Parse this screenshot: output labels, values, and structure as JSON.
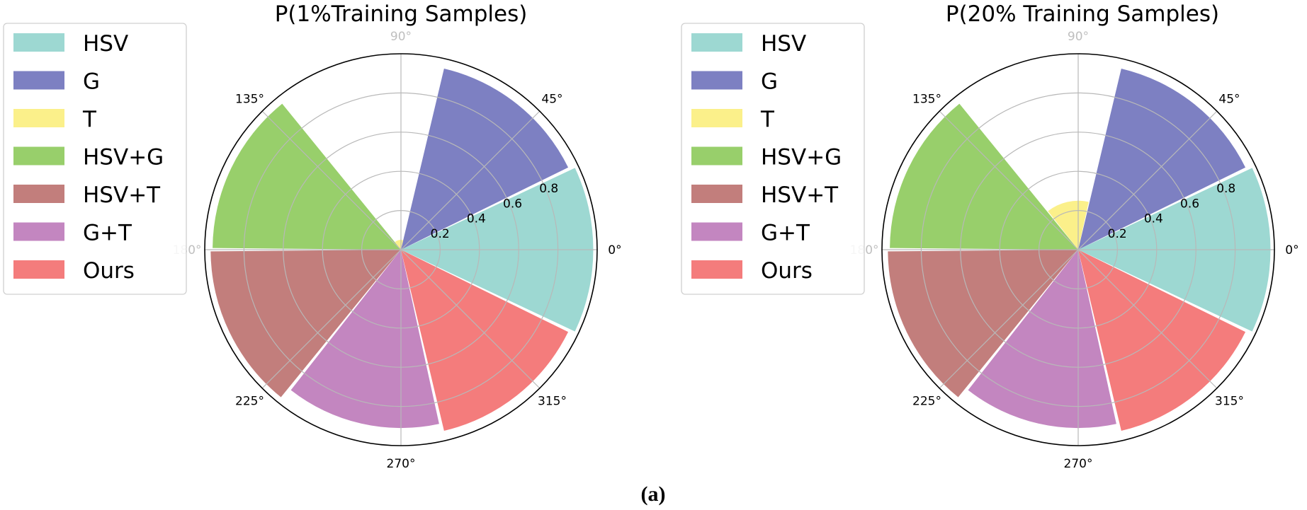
{
  "caption": "(a)",
  "colors": {
    "HSV": "#9dd8d2",
    "G": "#7d80c2",
    "T": "#fbf08a",
    "HSV+G": "#98cf6b",
    "HSV+T": "#c27e7c",
    "G+T": "#c386c0",
    "Ours": "#f47c7c"
  },
  "chart_data": [
    {
      "type": "polar-bar",
      "title": "P(1%Training Samples)",
      "categories": [
        "HSV",
        "G",
        "T",
        "HSV+G",
        "HSV+T",
        "G+T",
        "Ours"
      ],
      "angles_deg": [
        0,
        51.43,
        102.86,
        154.29,
        205.71,
        257.14,
        308.57
      ],
      "values": [
        0.98,
        0.95,
        0.05,
        0.96,
        0.97,
        0.91,
        0.95
      ],
      "rlim": [
        0,
        1.0
      ],
      "radial_ticks": [
        "0.2",
        "0.4",
        "0.6",
        "0.8"
      ],
      "angle_labels": [
        "0°",
        "45°",
        "90°",
        "135°",
        "180°",
        "225°",
        "270°",
        "315°"
      ],
      "legend": [
        "HSV",
        "G",
        "T",
        "HSV+G",
        "HSV+T",
        "G+T",
        "Ours"
      ],
      "legend_position": "left"
    },
    {
      "type": "polar-bar",
      "title": "P(20% Training Samples)",
      "categories": [
        "HSV",
        "G",
        "T",
        "HSV+G",
        "HSV+T",
        "G+T",
        "Ours"
      ],
      "angles_deg": [
        0,
        51.43,
        102.86,
        154.29,
        205.71,
        257.14,
        308.57
      ],
      "values": [
        0.98,
        0.95,
        0.25,
        0.96,
        0.97,
        0.91,
        0.95
      ],
      "rlim": [
        0,
        1.0
      ],
      "radial_ticks": [
        "0.2",
        "0.4",
        "0.6",
        "0.8"
      ],
      "angle_labels": [
        "0°",
        "45°",
        "90°",
        "135°",
        "180°",
        "225°",
        "270°",
        "315°"
      ],
      "legend": [
        "HSV",
        "G",
        "T",
        "HSV+G",
        "HSV+T",
        "G+T",
        "Ours"
      ],
      "legend_position": "left"
    }
  ]
}
